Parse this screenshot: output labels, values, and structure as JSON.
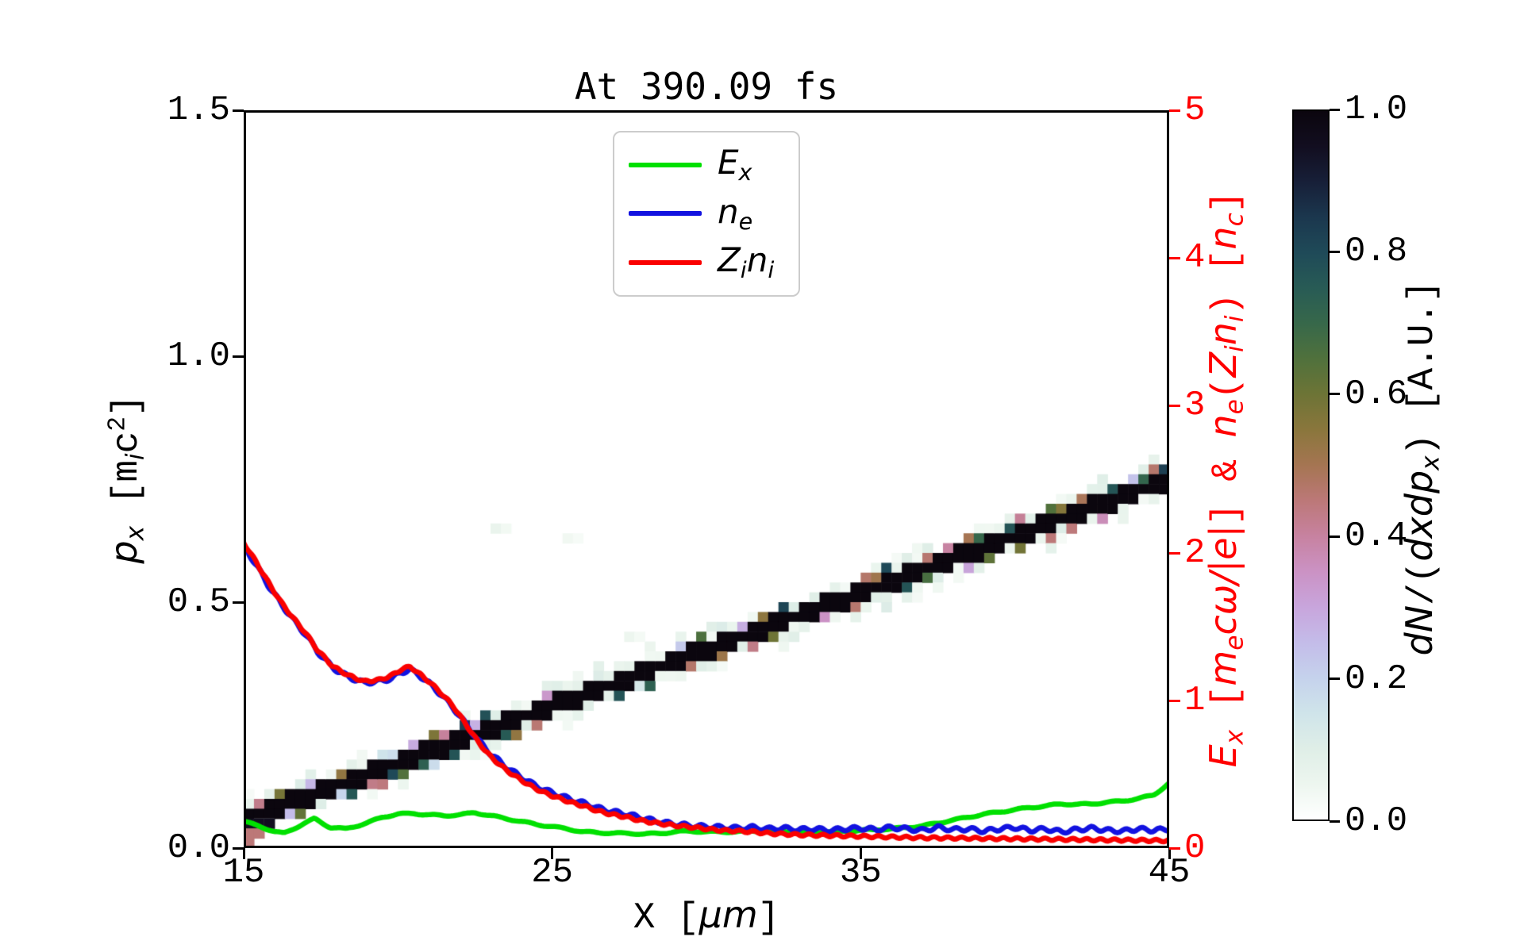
{
  "title": "At 390.09 fs",
  "axes": {
    "x": {
      "label_parts": [
        {
          "t": "X [",
          "s": ""
        },
        {
          "t": "μm",
          "s": "it"
        },
        {
          "t": "]",
          "s": ""
        }
      ],
      "ticks": [
        "15",
        "25",
        "35",
        "45"
      ],
      "tick_values": [
        15,
        25,
        35,
        45
      ],
      "range": [
        15,
        45
      ]
    },
    "y_left": {
      "label_parts": [
        {
          "t": "p",
          "s": "it"
        },
        {
          "t": "x",
          "s": "it sub"
        },
        {
          "t": " [",
          "s": ""
        },
        {
          "t": "m",
          "s": ""
        },
        {
          "t": "i",
          "s": "it sub"
        },
        {
          "t": "c",
          "s": ""
        },
        {
          "t": "2",
          "s": "sup"
        },
        {
          "t": "]",
          "s": ""
        }
      ],
      "ticks": [
        "0.0",
        "0.5",
        "1.0",
        "1.5"
      ],
      "tick_values": [
        0,
        0.5,
        1.0,
        1.5
      ],
      "range": [
        0,
        1.5
      ],
      "color": "#000000"
    },
    "y_right": {
      "label_parts": [
        {
          "t": "E",
          "s": "it"
        },
        {
          "t": "x",
          "s": "it sub"
        },
        {
          "t": " [",
          "s": ""
        },
        {
          "t": "m",
          "s": "it"
        },
        {
          "t": "e",
          "s": "it sub"
        },
        {
          "t": "c",
          "s": "it"
        },
        {
          "t": "ω",
          "s": "it"
        },
        {
          "t": "/|e|",
          "s": "it"
        },
        {
          "t": "] & ",
          "s": ""
        },
        {
          "t": "n",
          "s": "it"
        },
        {
          "t": "e",
          "s": "it sub"
        },
        {
          "t": "(",
          "s": ""
        },
        {
          "t": "Z",
          "s": "it"
        },
        {
          "t": "i",
          "s": "it sub"
        },
        {
          "t": "n",
          "s": "it"
        },
        {
          "t": "i",
          "s": "it sub"
        },
        {
          "t": ")",
          "s": ""
        },
        {
          "t": " [",
          "s": ""
        },
        {
          "t": "n",
          "s": "it"
        },
        {
          "t": "c",
          "s": "it sub"
        },
        {
          "t": "]",
          "s": ""
        }
      ],
      "ticks": [
        "0",
        "1",
        "2",
        "3",
        "4",
        "5"
      ],
      "tick_values": [
        0,
        1,
        2,
        3,
        4,
        5
      ],
      "range": [
        0,
        5
      ],
      "color": "#ff0000"
    }
  },
  "legend": {
    "items": [
      {
        "name": "E_x",
        "color": "#00e000",
        "label_parts": [
          {
            "t": "E",
            "s": "it"
          },
          {
            "t": "x",
            "s": "it sub"
          }
        ]
      },
      {
        "name": "n_e",
        "color": "#1212e0",
        "label_parts": [
          {
            "t": "n",
            "s": "it"
          },
          {
            "t": "e",
            "s": "it sub"
          }
        ]
      },
      {
        "name": "Z_i n_i",
        "color": "#fa0000",
        "label_parts": [
          {
            "t": "Z",
            "s": "it"
          },
          {
            "t": "i",
            "s": "it sub"
          },
          {
            "t": "n",
            "s": "it"
          },
          {
            "t": "i",
            "s": "it sub"
          }
        ]
      }
    ]
  },
  "colorbar": {
    "label_parts": [
      {
        "t": "dN",
        "s": "it"
      },
      {
        "t": "/(",
        "s": ""
      },
      {
        "t": "dxdp",
        "s": "it"
      },
      {
        "t": "x",
        "s": "it sub"
      },
      {
        "t": ")",
        "s": ""
      },
      {
        "t": " [A.U.]",
        "s": ""
      }
    ],
    "ticks": [
      "0.0",
      "0.2",
      "0.4",
      "0.6",
      "0.8",
      "1.0"
    ],
    "tick_values": [
      0,
      0.2,
      0.4,
      0.6,
      0.8,
      1.0
    ],
    "range": [
      0,
      1
    ]
  },
  "chart_data": {
    "type": "composite",
    "title": "At 390.09 fs",
    "xlabel": "X [μm]",
    "ylabel_left": "p_x [m_i c^2]",
    "ylabel_right": "E_x [m_e cω/|e|] & n_e(Z_i n_i) [n_c]",
    "colorbar_label": "dN/(dxdp_x) [A.U.]",
    "x_range": [
      15,
      45
    ],
    "y_left_range": [
      0,
      1.5
    ],
    "y_right_range": [
      0,
      5
    ],
    "grid": false,
    "legend_position": "upper center",
    "heatmap": {
      "description": "ion phase-space band p_x(x), pixelated, dark core with colored noise halo",
      "band": {
        "p_at_x15": 0.058,
        "p_at_x45": 0.75,
        "core_value": 1.0,
        "ncols": 90,
        "nrows": 75,
        "noise_seed": 20
      },
      "smudges": [
        {
          "x": 23.2,
          "p": 0.655,
          "v": 0.06
        },
        {
          "x": 25.4,
          "p": 0.635,
          "v": 0.04
        },
        {
          "x": 27.5,
          "p": 0.44,
          "v": 0.05
        }
      ],
      "colormap_stops": [
        [
          0.0,
          "#ffffff"
        ],
        [
          0.05,
          "#edf6ef"
        ],
        [
          0.1,
          "#dfeee7"
        ],
        [
          0.15,
          "#cfe4ea"
        ],
        [
          0.2,
          "#c5d2ec"
        ],
        [
          0.25,
          "#c4bce9"
        ],
        [
          0.3,
          "#c8a5dc"
        ],
        [
          0.35,
          "#cb92c4"
        ],
        [
          0.4,
          "#c782a0"
        ],
        [
          0.45,
          "#bc7878"
        ],
        [
          0.5,
          "#a57552"
        ],
        [
          0.55,
          "#8a763c"
        ],
        [
          0.6,
          "#6d7436"
        ],
        [
          0.65,
          "#50713c"
        ],
        [
          0.7,
          "#37684a"
        ],
        [
          0.75,
          "#285b55"
        ],
        [
          0.8,
          "#1f4a58"
        ],
        [
          0.85,
          "#1b374e"
        ],
        [
          0.9,
          "#171f38"
        ],
        [
          0.95,
          "#120e20"
        ],
        [
          1.0,
          "#0b060e"
        ]
      ]
    },
    "series": [
      {
        "name": "E_x",
        "axis": "right",
        "color": "#00e000",
        "wiggle": {
          "amp": 0.005,
          "wavelength": 1.0,
          "phase": 0.3
        },
        "x": [
          15,
          15.5,
          16,
          16.3,
          16.8,
          17.3,
          17.8,
          18.3,
          19,
          19.5,
          20,
          20.5,
          21,
          21.5,
          22,
          22.5,
          23,
          23.5,
          24,
          24.5,
          25,
          25.5,
          26,
          26.5,
          27,
          27.5,
          28,
          28.5,
          29,
          29.5,
          30,
          31,
          32,
          33,
          34,
          35,
          35.5,
          36,
          36.5,
          37,
          37.5,
          38,
          38.5,
          39,
          39.5,
          40,
          40.5,
          41,
          41.5,
          42,
          42.5,
          43,
          43.5,
          44,
          44.5,
          45
        ],
        "v": [
          0.18,
          0.15,
          0.11,
          0.1,
          0.15,
          0.2,
          0.14,
          0.13,
          0.17,
          0.21,
          0.23,
          0.235,
          0.225,
          0.22,
          0.225,
          0.24,
          0.22,
          0.2,
          0.18,
          0.16,
          0.145,
          0.13,
          0.11,
          0.105,
          0.1,
          0.1,
          0.095,
          0.1,
          0.11,
          0.115,
          0.11,
          0.11,
          0.12,
          0.11,
          0.11,
          0.12,
          0.125,
          0.13,
          0.14,
          0.15,
          0.17,
          0.19,
          0.21,
          0.23,
          0.245,
          0.26,
          0.275,
          0.285,
          0.3,
          0.295,
          0.3,
          0.31,
          0.32,
          0.335,
          0.36,
          0.44
        ]
      },
      {
        "name": "n_e",
        "axis": "right",
        "color": "#1212e0",
        "wiggle": {
          "amp": 0.013,
          "wavelength": 0.55,
          "phase": 0.0
        },
        "x": [
          15,
          15.4,
          15.8,
          16.2,
          16.6,
          17,
          17.4,
          17.9,
          18.4,
          18.9,
          19.4,
          19.8,
          20.1,
          20.4,
          20.7,
          21,
          21.4,
          21.8,
          22.2,
          22.6,
          23,
          23.5,
          24,
          24.4,
          24.8,
          25.2,
          25.6,
          26.1,
          26.5,
          26.9,
          27.4,
          27.8,
          28.2,
          28.7,
          29.1,
          29.6,
          30,
          30.5,
          31,
          31.5,
          32,
          32.5,
          33,
          33.5,
          34,
          34.5,
          35,
          35.5,
          36,
          36.5,
          37,
          37.5,
          38,
          38.5,
          39,
          39.5,
          40,
          40.5,
          41,
          41.5,
          42,
          42.5,
          43,
          43.5,
          44,
          44.5,
          45
        ],
        "v": [
          2.05,
          1.92,
          1.78,
          1.66,
          1.55,
          1.45,
          1.33,
          1.22,
          1.16,
          1.12,
          1.13,
          1.15,
          1.19,
          1.21,
          1.17,
          1.12,
          1.04,
          0.95,
          0.84,
          0.73,
          0.64,
          0.55,
          0.48,
          0.43,
          0.39,
          0.36,
          0.33,
          0.3,
          0.27,
          0.25,
          0.23,
          0.21,
          0.19,
          0.17,
          0.16,
          0.15,
          0.145,
          0.14,
          0.135,
          0.14,
          0.13,
          0.135,
          0.125,
          0.13,
          0.12,
          0.13,
          0.135,
          0.125,
          0.14,
          0.13,
          0.12,
          0.14,
          0.125,
          0.13,
          0.115,
          0.13,
          0.14,
          0.12,
          0.13,
          0.11,
          0.125,
          0.135,
          0.12,
          0.115,
          0.13,
          0.12,
          0.13
        ]
      },
      {
        "name": "Z_i n_i",
        "axis": "right",
        "color": "#fa0000",
        "wiggle": {
          "amp": 0.008,
          "wavelength": 0.45,
          "phase": 1.2
        },
        "x": [
          15,
          15.4,
          15.8,
          16.2,
          16.6,
          17,
          17.4,
          17.9,
          18.4,
          18.9,
          19.4,
          19.8,
          20.1,
          20.4,
          20.7,
          21,
          21.4,
          21.8,
          22.2,
          22.6,
          23,
          23.5,
          24,
          24.4,
          24.8,
          25.2,
          25.6,
          26.1,
          26.5,
          26.9,
          27.4,
          27.8,
          28.2,
          28.7,
          29.1,
          29.6,
          30,
          30.5,
          31,
          31.5,
          32,
          33,
          34,
          35,
          36,
          37,
          38,
          39,
          40,
          41,
          42,
          43,
          44,
          45
        ],
        "v": [
          2.07,
          1.94,
          1.8,
          1.67,
          1.56,
          1.46,
          1.34,
          1.23,
          1.17,
          1.13,
          1.14,
          1.17,
          1.21,
          1.23,
          1.18,
          1.13,
          1.05,
          0.96,
          0.84,
          0.72,
          0.62,
          0.53,
          0.46,
          0.41,
          0.37,
          0.34,
          0.31,
          0.28,
          0.25,
          0.23,
          0.21,
          0.19,
          0.175,
          0.16,
          0.15,
          0.14,
          0.13,
          0.12,
          0.115,
          0.11,
          0.1,
          0.09,
          0.085,
          0.08,
          0.075,
          0.07,
          0.068,
          0.065,
          0.063,
          0.06,
          0.058,
          0.055,
          0.053,
          0.05
        ]
      }
    ]
  }
}
